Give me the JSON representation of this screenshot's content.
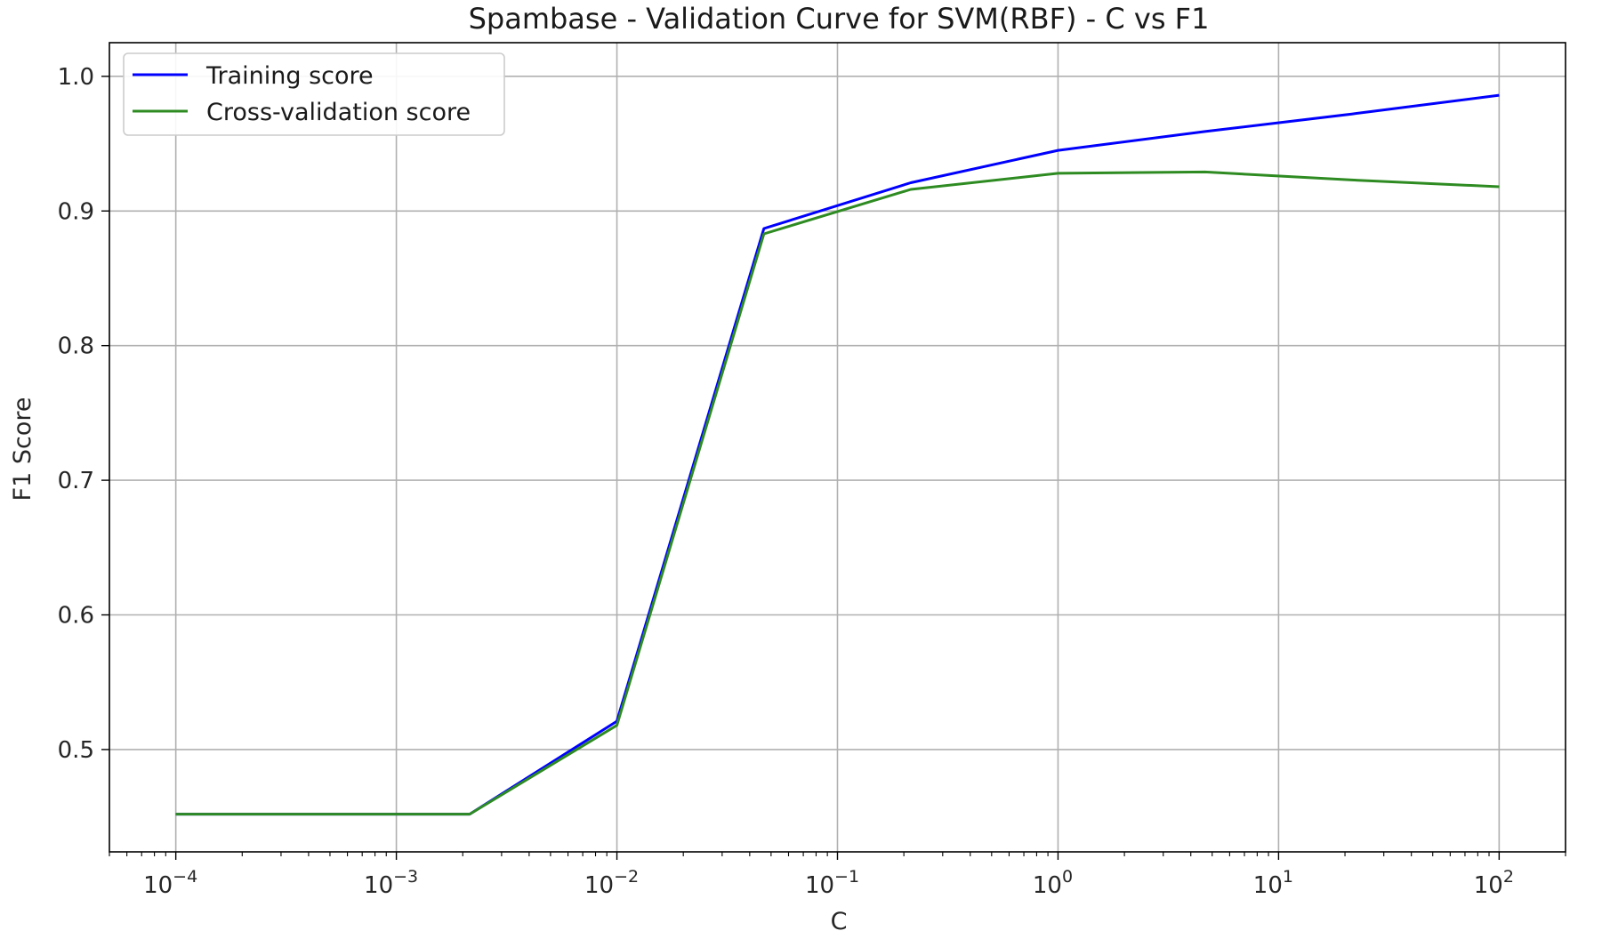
{
  "chart_data": {
    "type": "line",
    "title": "Spambase - Validation Curve for SVM(RBF) - C vs F1",
    "xlabel": "C",
    "ylabel": "F1 Score",
    "xscale": "log",
    "xlim": [
      5e-05,
      200
    ],
    "ylim": [
      0.424,
      1.025
    ],
    "grid": true,
    "legend_position": "top-left",
    "x": [
      0.0001,
      0.000464,
      0.00215,
      0.01,
      0.0464,
      0.215,
      1,
      4.64,
      21.5,
      100
    ],
    "series": [
      {
        "name": "Training score",
        "color": "#0000ff",
        "values": [
          0.452,
          0.452,
          0.452,
          0.521,
          0.887,
          0.921,
          0.945,
          0.959,
          0.972,
          0.986
        ]
      },
      {
        "name": "Cross-validation score",
        "color": "#2e8b22",
        "values": [
          0.452,
          0.452,
          0.452,
          0.518,
          0.883,
          0.916,
          0.928,
          0.929,
          0.923,
          0.918
        ]
      }
    ],
    "xticks": [
      {
        "value": 0.0001,
        "base": "10",
        "exp": "−4"
      },
      {
        "value": 0.001,
        "base": "10",
        "exp": "−3"
      },
      {
        "value": 0.01,
        "base": "10",
        "exp": "−2"
      },
      {
        "value": 0.1,
        "base": "10",
        "exp": "−1"
      },
      {
        "value": 1,
        "base": "10",
        "exp": "0"
      },
      {
        "value": 10,
        "base": "10",
        "exp": "1"
      },
      {
        "value": 100,
        "base": "10",
        "exp": "2"
      }
    ],
    "yticks": [
      0.5,
      0.6,
      0.7,
      0.8,
      0.9,
      1.0
    ],
    "ytick_labels": [
      "0.5",
      "0.6",
      "0.7",
      "0.8",
      "0.9",
      "1.0"
    ]
  }
}
